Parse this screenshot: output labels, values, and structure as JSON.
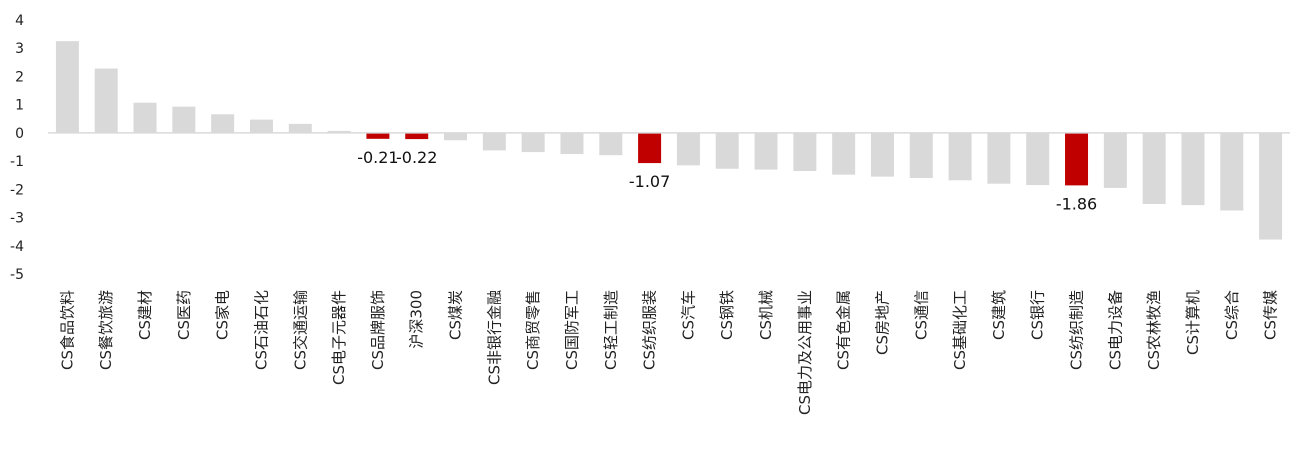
{
  "chart_data": {
    "type": "bar",
    "title": "",
    "xlabel": "",
    "ylabel": "",
    "ylim": [
      -5,
      4
    ],
    "yticks": [
      4,
      3,
      2,
      1,
      0,
      -1,
      -2,
      -3,
      -4,
      -5
    ],
    "grid": false,
    "legend": "none",
    "categories": [
      "CS食品饮料",
      "CS餐饮旅游",
      "CS建材",
      "CS医药",
      "CS家电",
      "CS石油石化",
      "CS交通运输",
      "CS电子元器件",
      "CS品牌服饰",
      "沪深300",
      "CS煤炭",
      "CS非银行金融",
      "CS商贸零售",
      "CS国防军工",
      "CS轻工制造",
      "CS纺织服装",
      "CS汽车",
      "CS钢铁",
      "CS机械",
      "CS电力及公用事业",
      "CS有色金属",
      "CS房地产",
      "CS通信",
      "CS基础化工",
      "CS建筑",
      "CS银行",
      "CS纺织制造",
      "CS电力设备",
      "CS农林牧渔",
      "CS计算机",
      "CS综合",
      "CS传媒"
    ],
    "values": [
      3.25,
      2.28,
      1.07,
      0.93,
      0.66,
      0.47,
      0.32,
      0.07,
      -0.21,
      -0.22,
      -0.26,
      -0.62,
      -0.68,
      -0.75,
      -0.79,
      -1.07,
      -1.15,
      -1.27,
      -1.3,
      -1.35,
      -1.48,
      -1.55,
      -1.6,
      -1.68,
      -1.8,
      -1.85,
      -1.86,
      -1.95,
      -2.52,
      -2.56,
      -2.75,
      -3.78
    ],
    "highlighted": [
      "CS品牌服饰",
      "沪深300",
      "CS纺织服装",
      "CS纺织制造"
    ],
    "data_labels": [
      {
        "category": "CS品牌服饰",
        "text": "-0.21"
      },
      {
        "category": "沪深300",
        "text": "-0.22"
      },
      {
        "category": "CS纺织服装",
        "text": "-1.07"
      },
      {
        "category": "CS纺织制造",
        "text": "-1.86"
      }
    ],
    "colors": {
      "default_bar": "#d9d9d9",
      "highlight_bar": "#c00000",
      "axis": "#d9d9d9"
    }
  }
}
